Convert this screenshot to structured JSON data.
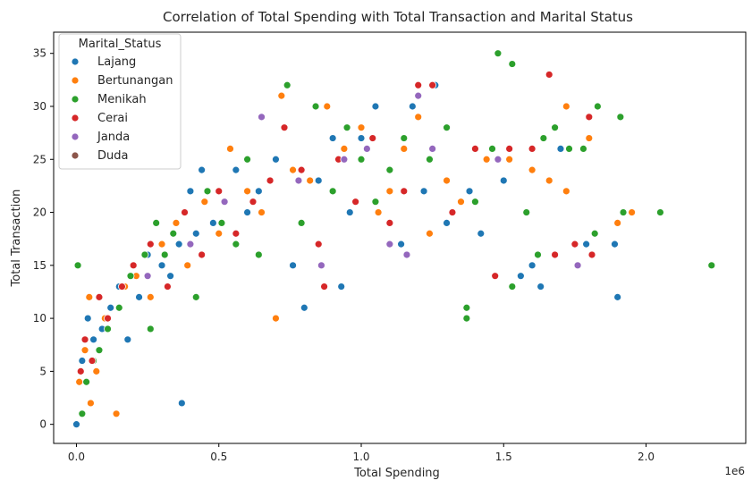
{
  "chart_data": {
    "type": "scatter",
    "title": "Correlation of Total Spending with Total Transaction and Marital Status",
    "xlabel": "Total Spending",
    "ylabel": "Total Transaction",
    "x_offset_label": "1e6",
    "xlim": [
      -80000,
      2350000
    ],
    "ylim": [
      -1.8,
      37
    ],
    "x_ticks": [
      0,
      500000,
      1000000,
      1500000,
      2000000
    ],
    "x_tick_labels": [
      "0.0",
      "0.5",
      "1.0",
      "1.5",
      "2.0"
    ],
    "y_ticks": [
      0,
      5,
      10,
      15,
      20,
      25,
      30,
      35
    ],
    "y_tick_labels": [
      "0",
      "5",
      "10",
      "15",
      "20",
      "25",
      "30",
      "35"
    ],
    "grid": false,
    "legend": {
      "title": "Marital_Status",
      "position": "top-left"
    },
    "series": [
      {
        "name": "Lajang",
        "color": "#1f77b4",
        "points": [
          [
            0,
            0
          ],
          [
            20000,
            6
          ],
          [
            40000,
            10
          ],
          [
            60000,
            8
          ],
          [
            90000,
            9
          ],
          [
            120000,
            11
          ],
          [
            150000,
            13
          ],
          [
            180000,
            8
          ],
          [
            220000,
            12
          ],
          [
            250000,
            16
          ],
          [
            300000,
            15
          ],
          [
            330000,
            14
          ],
          [
            360000,
            17
          ],
          [
            370000,
            2
          ],
          [
            400000,
            22
          ],
          [
            420000,
            18
          ],
          [
            440000,
            24
          ],
          [
            480000,
            19
          ],
          [
            520000,
            21
          ],
          [
            560000,
            24
          ],
          [
            600000,
            20
          ],
          [
            640000,
            22
          ],
          [
            700000,
            25
          ],
          [
            760000,
            15
          ],
          [
            800000,
            11
          ],
          [
            850000,
            23
          ],
          [
            900000,
            27
          ],
          [
            930000,
            13
          ],
          [
            960000,
            20
          ],
          [
            1000000,
            27
          ],
          [
            1050000,
            30
          ],
          [
            1100000,
            24
          ],
          [
            1140000,
            17
          ],
          [
            1180000,
            30
          ],
          [
            1220000,
            22
          ],
          [
            1260000,
            32
          ],
          [
            1300000,
            19
          ],
          [
            1380000,
            22
          ],
          [
            1420000,
            18
          ],
          [
            1500000,
            23
          ],
          [
            1560000,
            14
          ],
          [
            1600000,
            15
          ],
          [
            1630000,
            13
          ],
          [
            1700000,
            26
          ],
          [
            1790000,
            17
          ],
          [
            1900000,
            12
          ],
          [
            1890000,
            17
          ]
        ]
      },
      {
        "name": "Bertunangan",
        "color": "#ff7f0e",
        "points": [
          [
            10000,
            4
          ],
          [
            30000,
            7
          ],
          [
            45000,
            12
          ],
          [
            50000,
            2
          ],
          [
            70000,
            5
          ],
          [
            100000,
            10
          ],
          [
            140000,
            1
          ],
          [
            170000,
            13
          ],
          [
            210000,
            14
          ],
          [
            260000,
            12
          ],
          [
            300000,
            17
          ],
          [
            350000,
            19
          ],
          [
            390000,
            15
          ],
          [
            450000,
            21
          ],
          [
            500000,
            18
          ],
          [
            540000,
            26
          ],
          [
            600000,
            22
          ],
          [
            650000,
            20
          ],
          [
            700000,
            10
          ],
          [
            720000,
            31
          ],
          [
            760000,
            24
          ],
          [
            820000,
            23
          ],
          [
            880000,
            30
          ],
          [
            940000,
            26
          ],
          [
            1000000,
            28
          ],
          [
            1060000,
            20
          ],
          [
            1100000,
            22
          ],
          [
            1150000,
            26
          ],
          [
            1200000,
            29
          ],
          [
            1240000,
            18
          ],
          [
            1300000,
            23
          ],
          [
            1350000,
            21
          ],
          [
            1440000,
            25
          ],
          [
            1520000,
            25
          ],
          [
            1600000,
            24
          ],
          [
            1660000,
            23
          ],
          [
            1720000,
            30
          ],
          [
            1720000,
            22
          ],
          [
            1800000,
            27
          ],
          [
            1900000,
            19
          ],
          [
            1950000,
            20
          ]
        ]
      },
      {
        "name": "Menikah",
        "color": "#2ca02c",
        "points": [
          [
            5000,
            15
          ],
          [
            20000,
            1
          ],
          [
            35000,
            4
          ],
          [
            60000,
            6
          ],
          [
            80000,
            7
          ],
          [
            110000,
            9
          ],
          [
            150000,
            11
          ],
          [
            190000,
            14
          ],
          [
            240000,
            16
          ],
          [
            260000,
            9
          ],
          [
            280000,
            19
          ],
          [
            310000,
            16
          ],
          [
            340000,
            18
          ],
          [
            380000,
            20
          ],
          [
            420000,
            12
          ],
          [
            460000,
            22
          ],
          [
            510000,
            19
          ],
          [
            560000,
            17
          ],
          [
            600000,
            25
          ],
          [
            640000,
            16
          ],
          [
            680000,
            23
          ],
          [
            740000,
            32
          ],
          [
            790000,
            19
          ],
          [
            840000,
            30
          ],
          [
            900000,
            22
          ],
          [
            950000,
            28
          ],
          [
            1000000,
            25
          ],
          [
            1050000,
            21
          ],
          [
            1100000,
            24
          ],
          [
            1150000,
            27
          ],
          [
            1200000,
            32
          ],
          [
            1240000,
            25
          ],
          [
            1300000,
            28
          ],
          [
            1370000,
            11
          ],
          [
            1370000,
            10
          ],
          [
            1400000,
            21
          ],
          [
            1460000,
            26
          ],
          [
            1480000,
            35
          ],
          [
            1530000,
            34
          ],
          [
            1530000,
            13
          ],
          [
            1580000,
            20
          ],
          [
            1620000,
            16
          ],
          [
            1640000,
            27
          ],
          [
            1680000,
            28
          ],
          [
            1730000,
            26
          ],
          [
            1780000,
            26
          ],
          [
            1830000,
            30
          ],
          [
            1820000,
            18
          ],
          [
            1910000,
            29
          ],
          [
            1920000,
            20
          ],
          [
            2050000,
            20
          ],
          [
            2230000,
            15
          ]
        ]
      },
      {
        "name": "Cerai",
        "color": "#d62728",
        "points": [
          [
            15000,
            5
          ],
          [
            30000,
            8
          ],
          [
            55000,
            6
          ],
          [
            80000,
            12
          ],
          [
            110000,
            10
          ],
          [
            160000,
            13
          ],
          [
            200000,
            15
          ],
          [
            260000,
            17
          ],
          [
            320000,
            13
          ],
          [
            380000,
            20
          ],
          [
            440000,
            16
          ],
          [
            500000,
            22
          ],
          [
            560000,
            18
          ],
          [
            620000,
            21
          ],
          [
            680000,
            23
          ],
          [
            730000,
            28
          ],
          [
            790000,
            24
          ],
          [
            850000,
            17
          ],
          [
            870000,
            13
          ],
          [
            920000,
            25
          ],
          [
            980000,
            21
          ],
          [
            1040000,
            27
          ],
          [
            1100000,
            19
          ],
          [
            1150000,
            22
          ],
          [
            1200000,
            32
          ],
          [
            1250000,
            32
          ],
          [
            1320000,
            20
          ],
          [
            1400000,
            26
          ],
          [
            1470000,
            14
          ],
          [
            1520000,
            26
          ],
          [
            1600000,
            26
          ],
          [
            1660000,
            33
          ],
          [
            1680000,
            16
          ],
          [
            1750000,
            17
          ],
          [
            1800000,
            29
          ],
          [
            1810000,
            16
          ]
        ]
      },
      {
        "name": "Janda",
        "color": "#9467bd",
        "points": [
          [
            250000,
            14
          ],
          [
            400000,
            17
          ],
          [
            520000,
            21
          ],
          [
            650000,
            29
          ],
          [
            780000,
            23
          ],
          [
            860000,
            15
          ],
          [
            940000,
            25
          ],
          [
            1020000,
            26
          ],
          [
            1100000,
            17
          ],
          [
            1160000,
            16
          ],
          [
            1200000,
            31
          ],
          [
            1250000,
            26
          ],
          [
            1480000,
            25
          ],
          [
            1760000,
            15
          ]
        ]
      },
      {
        "name": "Duda",
        "color": "#8c564b",
        "points": []
      }
    ]
  }
}
